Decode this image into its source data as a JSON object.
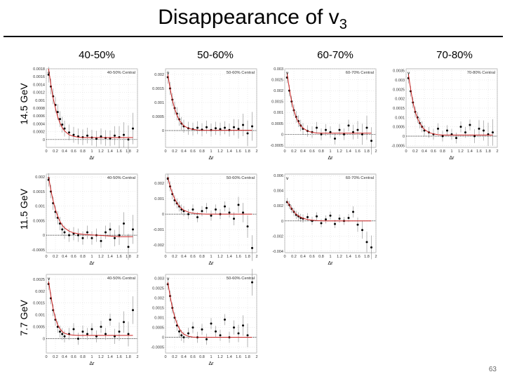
{
  "slide": {
    "title_main": "Disappearance of v",
    "title_sub": "3",
    "page_number": "63",
    "columns": [
      "40-50%",
      "50-60%",
      "60-70%",
      "70-80%"
    ],
    "rows": [
      "14.5 GeV",
      "11.5 GeV",
      "7.7 GeV"
    ]
  },
  "colors": {
    "data": "#000000",
    "fit": "#cc2222",
    "band": "#888888",
    "frame": "#aaaaaa"
  },
  "chart_data": [
    {
      "type": "scatter",
      "row": "14.5 GeV",
      "centrality": "40-50%",
      "legend": "40-50% Central",
      "ylabel_html": "v",
      "xlabel": "Δr",
      "xlim": [
        0,
        2
      ],
      "ylim": [
        -0.0002,
        0.0018
      ],
      "x_ticks": [
        "0",
        "0.2",
        "0.4",
        "0.6",
        "0.8",
        "1",
        "1.2",
        "1.4",
        "1.6",
        "1.8",
        "2"
      ],
      "y_ticks": [
        0,
        0.0002,
        0.0004,
        0.0006,
        0.0008,
        0.001,
        0.0012,
        0.0014,
        0.0016,
        0.0018
      ],
      "y_tick_labels": [
        "0",
        "0.0002",
        "0.0004",
        "0.0006",
        "0.0008",
        "0.001",
        "0.0012",
        "0.0014",
        "0.0016",
        "0.0018"
      ],
      "x": [
        0.05,
        0.1,
        0.15,
        0.2,
        0.25,
        0.3,
        0.35,
        0.4,
        0.5,
        0.6,
        0.7,
        0.8,
        0.9,
        1.0,
        1.1,
        1.2,
        1.3,
        1.4,
        1.5,
        1.6,
        1.7,
        1.8,
        1.9
      ],
      "y": [
        0.00165,
        0.00135,
        0.0011,
        0.00088,
        0.0007,
        0.00052,
        0.00038,
        0.00028,
        0.00018,
        0.00012,
        8e-05,
        6e-05,
        0.0001,
        5e-05,
        2e-05,
        8e-05,
        4e-05,
        3e-05,
        0.0001,
        6e-05,
        0.00012,
        0.0,
        0.00028
      ],
      "fit": [
        0.0018,
        0.0014,
        0.00105,
        0.0008,
        0.00058,
        0.00042,
        0.0003,
        0.00022,
        0.00012,
        8e-05,
        6e-05,
        5e-05,
        5e-05,
        5e-05,
        5e-05,
        5e-05,
        5e-05,
        5e-05,
        5e-05,
        5e-05,
        5e-05,
        5e-05,
        5e-05
      ]
    },
    {
      "type": "scatter",
      "row": "14.5 GeV",
      "centrality": "50-60%",
      "legend": "50-60% Central",
      "ylabel_html": "v",
      "xlabel": "Δr",
      "xlim": [
        0,
        2
      ],
      "ylim": [
        -0.0006,
        0.0022
      ],
      "x_ticks": [
        "0",
        "0.2",
        "0.4",
        "0.6",
        "0.8",
        "1",
        "1.2",
        "1.4",
        "1.6",
        "1.8",
        "2"
      ],
      "y_ticks": [
        0,
        0.0005,
        0.001,
        0.0015,
        0.002
      ],
      "y_tick_labels": [
        "0",
        "0.0005",
        "0.001",
        "0.0015",
        "0.002"
      ],
      "x": [
        0.05,
        0.1,
        0.15,
        0.2,
        0.25,
        0.3,
        0.35,
        0.4,
        0.5,
        0.6,
        0.7,
        0.8,
        0.9,
        1.0,
        1.1,
        1.2,
        1.3,
        1.4,
        1.5,
        1.6,
        1.7,
        1.8,
        1.9
      ],
      "y": [
        0.0019,
        0.0015,
        0.0011,
        0.0008,
        0.0006,
        0.0004,
        0.00025,
        0.00015,
        8e-05,
        5e-05,
        0.0001,
        3e-05,
        0.00012,
        2e-05,
        8e-05,
        5e-05,
        0.0001,
        2e-05,
        0.00012,
        6e-05,
        0.0002,
        -0.0001,
        0.00015
      ],
      "fit": [
        0.002,
        0.0015,
        0.00108,
        0.00078,
        0.00055,
        0.00038,
        0.00026,
        0.00017,
        8e-05,
        4e-05,
        2e-05,
        1e-05,
        1e-05,
        1e-05,
        1e-05,
        1e-05,
        1e-05,
        1e-05,
        1e-05,
        1e-05,
        1e-05,
        1e-05,
        1e-05
      ]
    },
    {
      "type": "scatter",
      "row": "14.5 GeV",
      "centrality": "60-70%",
      "legend": "60-70% Central",
      "ylabel_html": "v",
      "xlabel": "Δr",
      "xlim": [
        0,
        2
      ],
      "ylim": [
        -0.0006,
        0.003
      ],
      "x_ticks": [
        "0",
        "0.2",
        "0.4",
        "0.6",
        "0.8",
        "1",
        "1.2",
        "1.4",
        "1.6",
        "1.8",
        "2"
      ],
      "y_ticks": [
        -0.0005,
        0,
        0.0005,
        0.001,
        0.0015,
        0.002,
        0.0025,
        0.003
      ],
      "y_tick_labels": [
        "-0.0005",
        "0",
        "0.0005",
        "0.001",
        "0.0015",
        "0.002",
        "0.0025",
        "0.003"
      ],
      "x": [
        0.05,
        0.1,
        0.15,
        0.2,
        0.25,
        0.3,
        0.35,
        0.4,
        0.5,
        0.6,
        0.7,
        0.8,
        0.9,
        1.0,
        1.1,
        1.2,
        1.3,
        1.4,
        1.5,
        1.6,
        1.7,
        1.8,
        1.9
      ],
      "y": [
        0.0026,
        0.002,
        0.0015,
        0.0011,
        0.0008,
        0.0006,
        0.0004,
        0.00025,
        0.00015,
        0.0001,
        0.0003,
        0.0,
        0.0002,
        0.0001,
        -0.0002,
        0.0002,
        0.0,
        0.0004,
        0.0001,
        0.0002,
        0.0,
        0.0003,
        -0.0003
      ],
      "fit": [
        0.0028,
        0.0021,
        0.0015,
        0.00108,
        0.00078,
        0.00055,
        0.0004,
        0.00028,
        0.00015,
        9e-05,
        6e-05,
        5e-05,
        5e-05,
        5e-05,
        5e-05,
        5e-05,
        5e-05,
        5e-05,
        5e-05,
        5e-05,
        5e-05,
        5e-05,
        5e-05
      ]
    },
    {
      "type": "scatter",
      "row": "14.5 GeV",
      "centrality": "70-80%",
      "legend": "70-80% Central",
      "ylabel_html": "v",
      "xlabel": "Δr",
      "xlim": [
        0,
        2
      ],
      "ylim": [
        -0.0006,
        0.0036
      ],
      "x_ticks": [
        "0",
        "0.2",
        "0.4",
        "0.6",
        "0.8",
        "1",
        "1.2",
        "1.4",
        "1.6",
        "1.8",
        "2"
      ],
      "y_ticks": [
        -0.0005,
        0,
        0.0005,
        0.001,
        0.0015,
        0.002,
        0.0025,
        0.003,
        0.0035
      ],
      "y_tick_labels": [
        "-0.0005",
        "0",
        "0.0005",
        "0.001",
        "0.0015",
        "0.002",
        "0.0025",
        "0.003",
        "0.0035"
      ],
      "x": [
        0.05,
        0.1,
        0.15,
        0.2,
        0.25,
        0.3,
        0.35,
        0.4,
        0.5,
        0.6,
        0.7,
        0.8,
        0.9,
        1.0,
        1.1,
        1.2,
        1.3,
        1.4,
        1.5,
        1.6,
        1.7,
        1.8,
        1.9
      ],
      "y": [
        0.0031,
        0.0024,
        0.0018,
        0.0013,
        0.001,
        0.0007,
        0.0005,
        0.0003,
        0.0002,
        0.0001,
        0.0004,
        0.0,
        0.0003,
        0.0001,
        -0.0001,
        0.0005,
        0.0002,
        0.0006,
        0.0,
        0.0004,
        0.0003,
        0.0001,
        0.0002
      ],
      "fit": [
        0.0033,
        0.0025,
        0.0018,
        0.0013,
        0.00095,
        0.0007,
        0.0005,
        0.00036,
        0.0002,
        0.00012,
        8e-05,
        6e-05,
        6e-05,
        6e-05,
        6e-05,
        6e-05,
        6e-05,
        6e-05,
        6e-05,
        6e-05,
        6e-05,
        6e-05,
        6e-05
      ]
    },
    {
      "type": "scatter",
      "row": "11.5 GeV",
      "centrality": "40-50%",
      "legend": "40-50% Central",
      "ylabel_html": "v",
      "xlabel": "Δr",
      "xlim": [
        0,
        2
      ],
      "ylim": [
        -0.0006,
        0.0021
      ],
      "x_ticks": [
        "0",
        "0.2",
        "0.4",
        "0.6",
        "0.8",
        "1",
        "1.2",
        "1.4",
        "1.6",
        "1.8",
        "2"
      ],
      "y_ticks": [
        -0.0005,
        0,
        0.0005,
        0.001,
        0.0015,
        0.002
      ],
      "y_tick_labels": [
        "-0.0005",
        "0",
        "0.0005",
        "0.001",
        "0.0015",
        "0.002"
      ],
      "x": [
        0.05,
        0.1,
        0.15,
        0.2,
        0.25,
        0.3,
        0.35,
        0.4,
        0.5,
        0.6,
        0.7,
        0.8,
        0.9,
        1.0,
        1.1,
        1.2,
        1.3,
        1.4,
        1.5,
        1.6,
        1.7,
        1.8,
        1.9
      ],
      "y": [
        0.0019,
        0.0015,
        0.0011,
        0.0008,
        0.0006,
        0.0004,
        0.0002,
        0.0001,
        0.0,
        5e-05,
        0.0,
        -0.0001,
        0.0001,
        -0.0001,
        0.0,
        -0.0002,
        0.0001,
        0.0002,
        -0.0001,
        0.0,
        0.0004,
        -0.0004,
        0.0002
      ],
      "fit": [
        0.002,
        0.00155,
        0.00118,
        0.00088,
        0.00065,
        0.00047,
        0.00034,
        0.00025,
        0.00014,
        8e-05,
        5e-05,
        3e-05,
        2e-05,
        1e-05,
        0.0,
        -1e-05,
        -2e-05,
        -3e-05,
        -4e-05,
        -5e-05,
        -5e-05,
        -5e-05,
        -5e-05
      ]
    },
    {
      "type": "scatter",
      "row": "11.5 GeV",
      "centrality": "50-60%",
      "legend": "50-60% Central",
      "ylabel_html": "v",
      "xlabel": "Δr",
      "xlim": [
        0,
        2
      ],
      "ylim": [
        -0.0025,
        0.0026
      ],
      "x_ticks": [
        "0",
        "0.2",
        "0.4",
        "0.6",
        "0.8",
        "1",
        "1.2",
        "1.4",
        "1.6",
        "1.8",
        "2"
      ],
      "y_ticks": [
        -0.002,
        -0.001,
        0,
        0.001,
        0.002
      ],
      "y_tick_labels": [
        "-0.002",
        "-0.001",
        "0",
        "0.001",
        "0.002"
      ],
      "x": [
        0.05,
        0.1,
        0.15,
        0.2,
        0.25,
        0.3,
        0.35,
        0.4,
        0.5,
        0.6,
        0.7,
        0.8,
        0.9,
        1.0,
        1.1,
        1.2,
        1.3,
        1.4,
        1.5,
        1.6,
        1.7,
        1.8,
        1.9
      ],
      "y": [
        0.0023,
        0.0018,
        0.0013,
        0.0009,
        0.0007,
        0.0005,
        0.0003,
        0.0002,
        0.0,
        0.0003,
        -0.0002,
        0.0002,
        0.0004,
        -0.0001,
        0.0003,
        0.0,
        0.0005,
        0.0001,
        -0.0003,
        0.0006,
        0.0001,
        -0.0008,
        -0.0022
      ],
      "fit": [
        0.0024,
        0.0018,
        0.00135,
        0.001,
        0.00072,
        0.00052,
        0.00037,
        0.00026,
        0.00013,
        6e-05,
        3e-05,
        1e-05,
        0.0,
        0.0,
        0.0,
        0.0,
        0.0,
        0.0,
        0.0,
        0.0,
        0.0,
        0.0,
        0.0
      ]
    },
    {
      "type": "scatter",
      "row": "11.5 GeV",
      "centrality": "60-70%",
      "legend": "60-70% Central",
      "ylabel_html": "v",
      "xlabel": "Δr",
      "xlim": [
        0,
        2
      ],
      "ylim": [
        -0.0042,
        0.0062
      ],
      "x_ticks": [
        "0",
        "0.2",
        "0.4",
        "0.6",
        "0.8",
        "1",
        "1.2",
        "1.4",
        "1.6",
        "1.8",
        "2"
      ],
      "y_ticks": [
        -0.004,
        -0.002,
        0,
        0.002,
        0.004,
        0.006
      ],
      "y_tick_labels": [
        "-0.004",
        "-0.002",
        "0",
        "0.002",
        "0.004",
        "0.006"
      ],
      "x": [
        0.05,
        0.1,
        0.15,
        0.2,
        0.25,
        0.3,
        0.35,
        0.4,
        0.5,
        0.6,
        0.7,
        0.8,
        0.9,
        1.0,
        1.1,
        1.2,
        1.3,
        1.4,
        1.5,
        1.6,
        1.7,
        1.8,
        1.9
      ],
      "y": [
        0.0025,
        0.0021,
        0.0016,
        0.0012,
        0.0008,
        0.0006,
        0.0004,
        0.0003,
        0.0005,
        0.0,
        0.0006,
        -0.0003,
        0.0002,
        0.0007,
        -0.0004,
        0.0003,
        0.0,
        0.0004,
        0.0012,
        -0.0005,
        -0.0012,
        -0.0028,
        -0.0035
      ],
      "fit": [
        0.0026,
        0.0021,
        0.0016,
        0.0012,
        0.0009,
        0.00065,
        0.00048,
        0.00035,
        0.00018,
        9e-05,
        4e-05,
        2e-05,
        0.0,
        0.0,
        0.0,
        0.0,
        0.0,
        0.0,
        0.0,
        0.0,
        0.0,
        0.0,
        0.0
      ]
    },
    {
      "type": "scatter",
      "row": "7.7 GeV",
      "centrality": "40-50%",
      "legend": "40-50% Central",
      "ylabel_html": "v",
      "xlabel": "Δr",
      "xlim": [
        0,
        2
      ],
      "ylim": [
        -0.0006,
        0.0027
      ],
      "x_ticks": [
        "0",
        "0.2",
        "0.4",
        "0.6",
        "0.8",
        "1",
        "1.2",
        "1.4",
        "1.6",
        "1.8",
        "2"
      ],
      "y_ticks": [
        0,
        0.0005,
        0.001,
        0.0015,
        0.002,
        0.0025
      ],
      "y_tick_labels": [
        "0",
        "0.0005",
        "0.001",
        "0.0015",
        "0.002",
        "0.0025"
      ],
      "x": [
        0.05,
        0.1,
        0.15,
        0.2,
        0.25,
        0.3,
        0.35,
        0.4,
        0.5,
        0.6,
        0.7,
        0.8,
        0.9,
        1.0,
        1.1,
        1.2,
        1.3,
        1.4,
        1.5,
        1.6,
        1.7,
        1.8,
        1.9
      ],
      "y": [
        0.0023,
        0.0017,
        0.0012,
        0.0008,
        0.0005,
        0.0003,
        0.0002,
        0.0001,
        0.0002,
        0.0004,
        0.0,
        0.0003,
        0.0002,
        0.0004,
        0.0001,
        0.0005,
        0.0002,
        0.0008,
        0.0001,
        0.0003,
        0.0007,
        0.0002,
        0.0012
      ],
      "fit": [
        0.0024,
        0.0018,
        0.00125,
        0.00085,
        0.00058,
        0.00042,
        0.0003,
        0.00023,
        0.00017,
        0.00015,
        0.00014,
        0.00014,
        0.00014,
        0.00014,
        0.00014,
        0.00014,
        0.00014,
        0.00014,
        0.00014,
        0.00014,
        0.00014,
        0.00014,
        0.00014
      ]
    },
    {
      "type": "scatter",
      "row": "7.7 GeV",
      "centrality": "50-60%",
      "legend": "50-60% Central",
      "ylabel_html": "v",
      "xlabel": "Δr",
      "xlim": [
        0,
        2
      ],
      "ylim": [
        -0.0008,
        0.0032
      ],
      "x_ticks": [
        "0",
        "0.2",
        "0.4",
        "0.6",
        "0.8",
        "1",
        "1.2",
        "1.4",
        "1.6",
        "1.8",
        "2"
      ],
      "y_ticks": [
        -0.0005,
        0,
        0.0005,
        0.001,
        0.0015,
        0.002,
        0.0025,
        0.003
      ],
      "y_tick_labels": [
        "-0.0005",
        "0",
        "0.0005",
        "0.001",
        "0.0015",
        "0.002",
        "0.0025",
        "0.003"
      ],
      "x": [
        0.05,
        0.1,
        0.15,
        0.2,
        0.25,
        0.3,
        0.35,
        0.4,
        0.5,
        0.6,
        0.7,
        0.8,
        0.9,
        1.0,
        1.1,
        1.2,
        1.3,
        1.4,
        1.5,
        1.6,
        1.7,
        1.8,
        1.9
      ],
      "y": [
        0.0027,
        0.0021,
        0.0015,
        0.001,
        0.0006,
        0.0003,
        0.0001,
        0.0,
        0.0002,
        0.0005,
        0.0,
        0.0004,
        -0.0001,
        0.0007,
        0.0003,
        0.0001,
        0.0009,
        0.0,
        0.0005,
        0.0002,
        0.0006,
        0.0001,
        0.0028
      ],
      "fit": [
        0.0028,
        0.0021,
        0.0015,
        0.00105,
        0.0007,
        0.00045,
        0.00028,
        0.00016,
        5e-05,
        1e-05,
        0.0,
        0.0,
        0.0,
        0.0,
        0.0,
        0.0,
        0.0,
        0.0,
        0.0,
        0.0,
        0.0,
        0.0,
        0.0
      ]
    }
  ]
}
